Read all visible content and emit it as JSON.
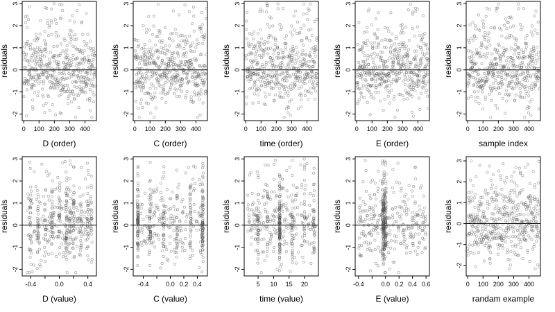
{
  "chart_data": [
    {
      "type": "scatter",
      "id": "d-order",
      "xlabel": "D (order)",
      "ylabel": "residuals",
      "xlim": [
        -10,
        475
      ],
      "ylim": [
        -2.3,
        3.1
      ],
      "xticks": [
        0,
        100,
        200,
        300,
        400
      ],
      "yticks": [
        -2,
        -1,
        0,
        1,
        2,
        3
      ],
      "hline": 0,
      "pattern": "order",
      "n": 470,
      "seed": 1,
      "grid": false
    },
    {
      "type": "scatter",
      "id": "c-order",
      "xlabel": "C (order)",
      "ylabel": "residuals",
      "xlim": [
        -10,
        475
      ],
      "ylim": [
        -2.3,
        3.1
      ],
      "xticks": [
        0,
        100,
        200,
        300,
        400
      ],
      "yticks": [
        -2,
        -1,
        0,
        1,
        2,
        3
      ],
      "hline": 0,
      "pattern": "order",
      "n": 470,
      "seed": 2,
      "grid": false
    },
    {
      "type": "scatter",
      "id": "time-order",
      "xlabel": "time (order)",
      "ylabel": "residuals",
      "xlim": [
        -10,
        475
      ],
      "ylim": [
        -2.3,
        3.1
      ],
      "xticks": [
        0,
        100,
        200,
        300,
        400
      ],
      "yticks": [
        -2,
        -1,
        0,
        1,
        2,
        3
      ],
      "hline": 0,
      "pattern": "order",
      "n": 470,
      "seed": 3,
      "grid": false
    },
    {
      "type": "scatter",
      "id": "e-order",
      "xlabel": "E (order)",
      "ylabel": "residuals",
      "xlim": [
        -10,
        475
      ],
      "ylim": [
        -2.3,
        3.1
      ],
      "xticks": [
        0,
        100,
        200,
        300,
        400
      ],
      "yticks": [
        -2,
        -1,
        0,
        1,
        2,
        3
      ],
      "hline": 0,
      "pattern": "order",
      "n": 470,
      "seed": 4,
      "grid": false
    },
    {
      "type": "scatter",
      "id": "sample-index",
      "xlabel": "sample index",
      "ylabel": "residuals",
      "xlim": [
        -10,
        475
      ],
      "ylim": [
        -2.3,
        3.1
      ],
      "xticks": [
        0,
        100,
        200,
        300,
        400
      ],
      "yticks": [
        -2,
        -1,
        0,
        1,
        2,
        3
      ],
      "hline": 0,
      "pattern": "order",
      "n": 470,
      "seed": 5,
      "grid": false
    },
    {
      "type": "scatter",
      "id": "d-value",
      "xlabel": "D (value)",
      "ylabel": "residuals",
      "xlim": [
        -0.52,
        0.52
      ],
      "ylim": [
        -2.3,
        3.1
      ],
      "xticks": [
        -0.4,
        0,
        0.4
      ],
      "xtick_labels": [
        "-0.4",
        "0.0",
        "0.4"
      ],
      "xticks_minor": [
        -0.2,
        0.2
      ],
      "yticks": [
        -2,
        -1,
        0,
        1,
        2,
        3
      ],
      "hline": 0,
      "pattern": "d",
      "n": 470,
      "seed": 6,
      "grid": false
    },
    {
      "type": "scatter",
      "id": "c-value",
      "xlabel": "C (value)",
      "ylabel": "residuals",
      "xlim": [
        -0.55,
        0.55
      ],
      "ylim": [
        -2.3,
        3.1
      ],
      "xticks": [
        -0.4,
        0,
        0.2,
        0.4
      ],
      "xtick_labels": [
        "-0.4",
        "0.0",
        "0.2",
        "0.4"
      ],
      "xticks_minor": [
        -0.2
      ],
      "yticks": [
        -2,
        -1,
        0,
        1,
        2,
        3
      ],
      "hline": 0,
      "pattern": "c",
      "n": 470,
      "seed": 7,
      "grid": false
    },
    {
      "type": "scatter",
      "id": "time-value",
      "xlabel": "time (value)",
      "ylabel": "residuals",
      "xlim": [
        0.5,
        24.5
      ],
      "ylim": [
        -2.3,
        3.1
      ],
      "xticks": [
        5,
        10,
        15,
        20
      ],
      "yticks": [
        -2,
        -1,
        0,
        1,
        2,
        3
      ],
      "hline": 0,
      "pattern": "time",
      "n": 470,
      "seed": 8,
      "grid": false
    },
    {
      "type": "scatter",
      "id": "e-value",
      "xlabel": "E (value)",
      "ylabel": "residuals",
      "xlim": [
        -0.45,
        0.65
      ],
      "ylim": [
        -2.3,
        3.1
      ],
      "xticks": [
        -0.4,
        0,
        0.2,
        0.4,
        0.6
      ],
      "xtick_labels": [
        "-0.4",
        "0.0",
        "0.2",
        "0.4",
        "0.6"
      ],
      "xticks_minor": [
        -0.2
      ],
      "yticks": [
        -2,
        -1,
        0,
        1,
        2,
        3
      ],
      "hline": 0,
      "pattern": "e",
      "n": 470,
      "seed": 9,
      "grid": false
    },
    {
      "type": "scatter",
      "id": "random-example",
      "xlabel": "randam example",
      "ylabel": "residuals",
      "xlim": [
        -10,
        475
      ],
      "ylim": [
        -2.5,
        3.2
      ],
      "xticks": [
        0,
        100,
        200,
        300,
        400
      ],
      "yticks": [
        -2,
        -1,
        0,
        1,
        2,
        3
      ],
      "hline": 0,
      "pattern": "order",
      "n": 470,
      "seed": 10,
      "grid": false
    }
  ]
}
